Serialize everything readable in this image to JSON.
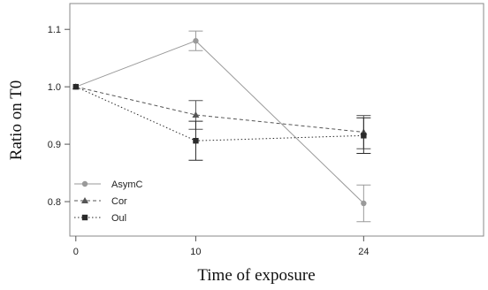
{
  "chart_data": {
    "type": "line",
    "title": "",
    "xlabel": "Time of exposure",
    "ylabel": "Ratio on T0",
    "x": [
      0,
      10,
      24
    ],
    "x_tick_labels": [
      "0",
      "10",
      "24"
    ],
    "y_ticks": [
      0.8,
      0.9,
      1.0,
      1.1
    ],
    "y_tick_labels": [
      "0.8",
      "0.9",
      "1.0",
      "1.1"
    ],
    "xlim": [
      -0.5,
      34
    ],
    "ylim": [
      0.74,
      1.145
    ],
    "grid": false,
    "legend_position": "bottom-left",
    "series": [
      {
        "name": "AsymC",
        "values": [
          1.0,
          1.08,
          0.797
        ],
        "errors": [
          0,
          0.017,
          0.032
        ],
        "marker": "circle",
        "line_style": "solid",
        "color": "#9a9a9a"
      },
      {
        "name": "Cor",
        "values": [
          1.0,
          0.951,
          0.921
        ],
        "errors": [
          0,
          0.025,
          0.029
        ],
        "marker": "triangle",
        "line_style": "dashed",
        "color": "#555555"
      },
      {
        "name": "Oul",
        "values": [
          1.0,
          0.906,
          0.915
        ],
        "errors": [
          0,
          0.034,
          0.031
        ],
        "marker": "square",
        "line_style": "dotted",
        "color": "#2a2a2a"
      }
    ]
  }
}
